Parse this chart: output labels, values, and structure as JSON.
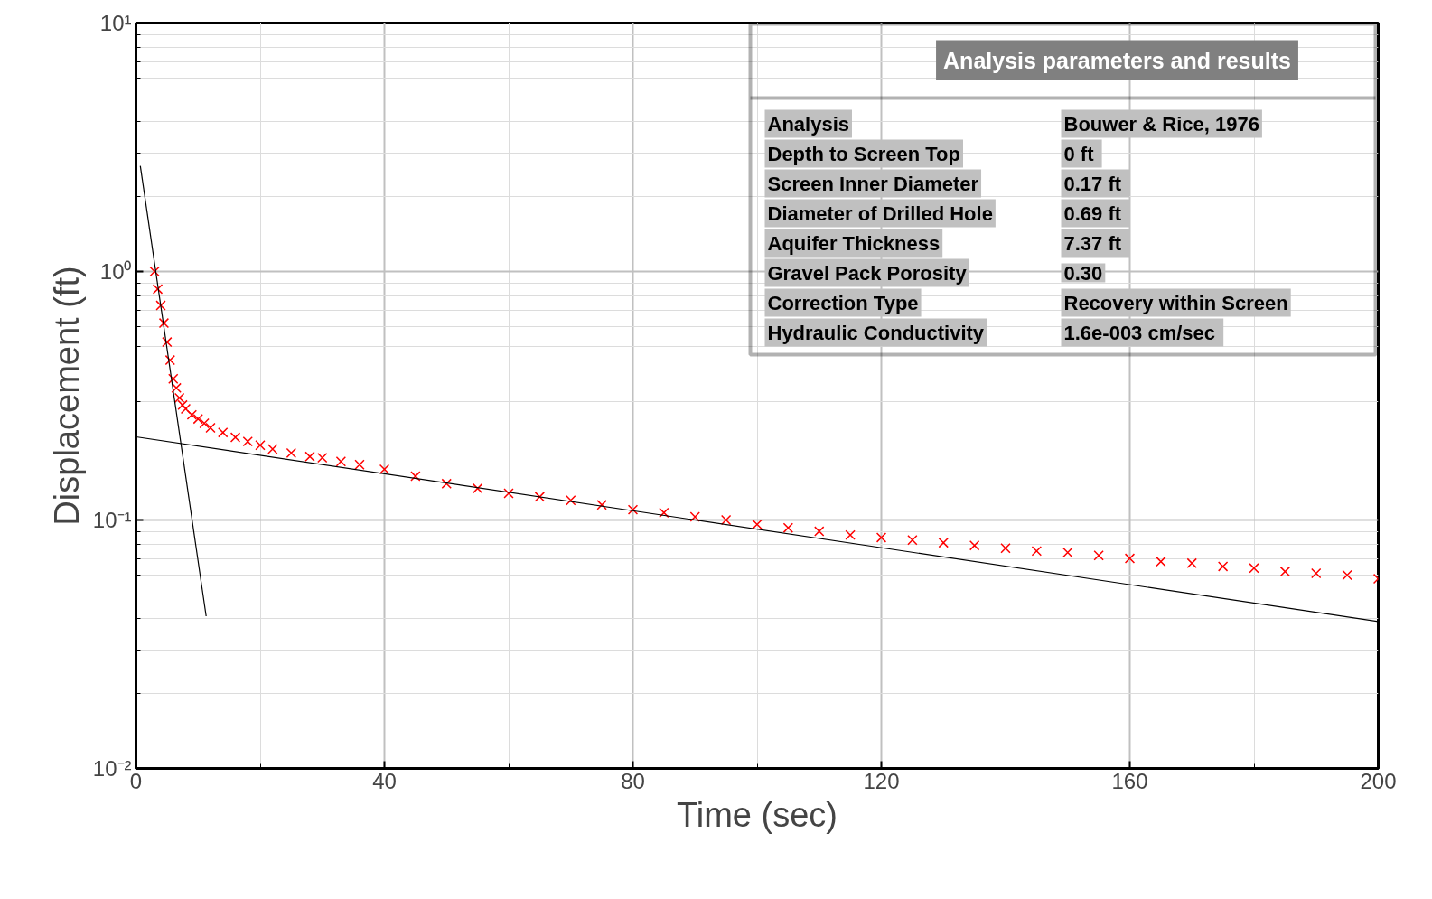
{
  "chart_data": {
    "type": "scatter",
    "xlabel": "Time (sec)",
    "ylabel": "Displacement (ft)",
    "log": "y",
    "xlim": [
      0,
      200
    ],
    "xticks": [
      0,
      40,
      80,
      120,
      160,
      200
    ],
    "ylim": [
      0.01,
      10
    ],
    "yticks": [
      {
        "value": 0.01,
        "label": "10⁻²"
      },
      {
        "value": 0.1,
        "label": "10⁻¹"
      },
      {
        "value": 1,
        "label": "10⁰"
      },
      {
        "value": 10,
        "label": "10¹"
      }
    ],
    "grid": true,
    "series": [
      {
        "marker": "cross",
        "color": "#ff0000",
        "x": [
          3,
          3.5,
          4,
          4.5,
          5,
          5.5,
          6,
          6.5,
          7,
          7.5,
          8,
          9,
          10,
          11,
          12,
          14,
          16,
          18,
          20,
          22,
          25,
          28,
          30,
          33,
          36,
          40,
          45,
          50,
          55,
          60,
          65,
          70,
          75,
          80,
          85,
          90,
          95,
          100,
          105,
          110,
          115,
          120,
          125,
          130,
          135,
          140,
          145,
          150,
          155,
          160,
          165,
          170,
          175,
          180,
          185,
          190,
          195,
          200
        ],
        "values": [
          1.0,
          0.85,
          0.73,
          0.62,
          0.52,
          0.44,
          0.37,
          0.34,
          0.31,
          0.29,
          0.28,
          0.265,
          0.255,
          0.245,
          0.235,
          0.225,
          0.215,
          0.207,
          0.2,
          0.193,
          0.186,
          0.18,
          0.178,
          0.172,
          0.167,
          0.16,
          0.15,
          0.14,
          0.134,
          0.128,
          0.124,
          0.12,
          0.115,
          0.11,
          0.107,
          0.103,
          0.1,
          0.096,
          0.093,
          0.09,
          0.087,
          0.085,
          0.083,
          0.081,
          0.079,
          0.077,
          0.075,
          0.074,
          0.072,
          0.07,
          0.068,
          0.067,
          0.065,
          0.064,
          0.062,
          0.061,
          0.06,
          0.058
        ]
      },
      {
        "type": "line",
        "color": "#000000",
        "x": [
          0.7,
          11.3
        ],
        "values": [
          2.66,
          0.041
        ]
      },
      {
        "type": "line",
        "color": "#000000",
        "x": [
          0,
          200
        ],
        "values": [
          0.216,
          0.039
        ]
      }
    ],
    "annotations": [
      "Analysis parameters and results",
      "Analysis",
      "Bouwer & Rice, 1976",
      "Depth to Screen Top",
      "0  ft",
      "Screen Inner Diameter",
      "0.17  ft",
      "Diameter of Drilled Hole",
      "0.69  ft",
      "Aquifer Thickness",
      "7.37  ft",
      "Gravel Pack Porosity",
      "0.30",
      "Correction Type",
      "Recovery within Screen",
      "Hydraulic Conductivity",
      "1.6e-003  cm/sec"
    ]
  }
}
